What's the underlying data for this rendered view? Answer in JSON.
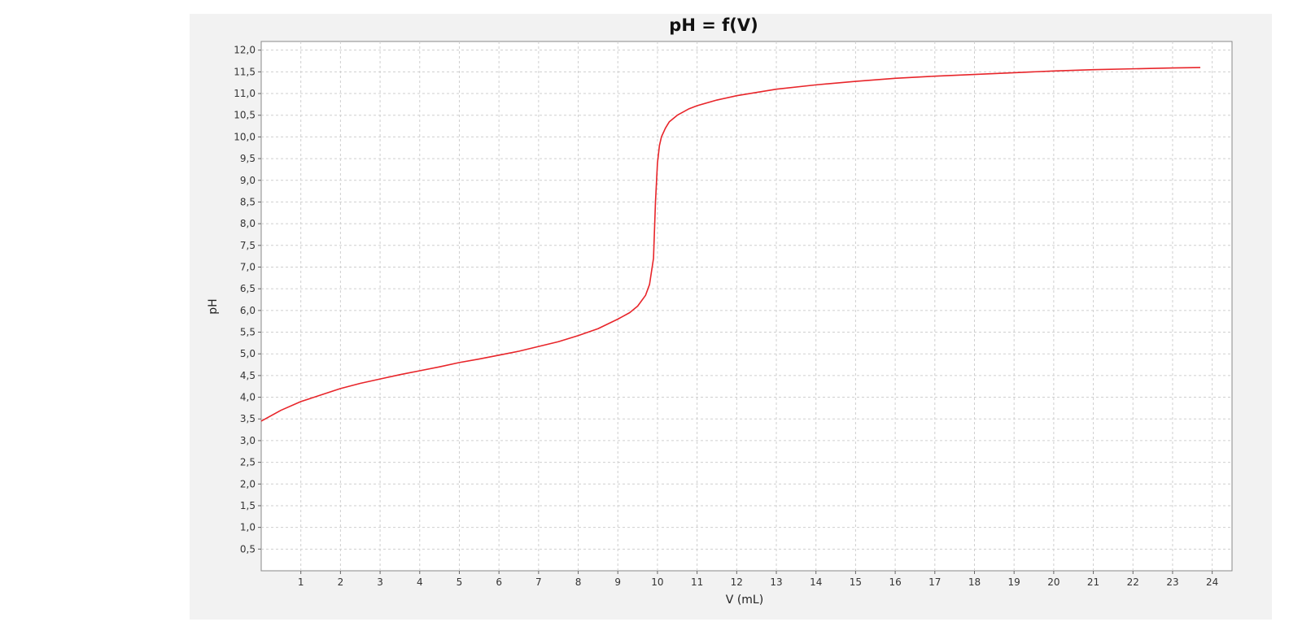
{
  "chart_data": {
    "type": "line",
    "title": "pH = f(V)",
    "xlabel": "V (mL)",
    "ylabel": "pH",
    "xlim": [
      0,
      24.5
    ],
    "ylim": [
      0,
      12.2
    ],
    "grid": true,
    "x_ticks": [
      1,
      2,
      3,
      4,
      5,
      6,
      7,
      8,
      9,
      10,
      11,
      12,
      13,
      14,
      15,
      16,
      17,
      18,
      19,
      20,
      21,
      22,
      23,
      24
    ],
    "x_tick_labels": [
      "1",
      "2",
      "3",
      "4",
      "5",
      "6",
      "7",
      "8",
      "9",
      "10",
      "11",
      "12",
      "13",
      "14",
      "15",
      "16",
      "17",
      "18",
      "19",
      "20",
      "21",
      "22",
      "23",
      "24"
    ],
    "y_ticks": [
      0.5,
      1,
      1.5,
      2,
      2.5,
      3,
      3.5,
      4,
      4.5,
      5,
      5.5,
      6,
      6.5,
      7,
      7.5,
      8,
      8.5,
      9,
      9.5,
      10,
      10.5,
      11,
      11.5,
      12
    ],
    "y_tick_labels": [
      "0,5",
      "1,0",
      "1,5",
      "2,0",
      "2,5",
      "3,0",
      "3,5",
      "4,0",
      "4,5",
      "5,0",
      "5,5",
      "6,0",
      "6,5",
      "7,0",
      "7,5",
      "8,0",
      "8,5",
      "9,0",
      "9,5",
      "10,0",
      "10,5",
      "11,0",
      "11,5",
      "12,0"
    ],
    "series": [
      {
        "color": "#e8252a",
        "x": [
          0,
          0.5,
          1,
          1.5,
          2,
          2.5,
          3,
          3.5,
          4,
          4.5,
          5,
          5.5,
          6,
          6.5,
          7,
          7.5,
          8,
          8.5,
          9,
          9.3,
          9.5,
          9.7,
          9.8,
          9.9,
          9.95,
          10,
          10.05,
          10.1,
          10.2,
          10.3,
          10.5,
          10.8,
          11,
          11.5,
          12,
          13,
          14,
          15,
          16,
          17,
          18,
          19,
          20,
          21,
          22,
          23,
          23.7
        ],
        "y": [
          3.45,
          3.7,
          3.9,
          4.05,
          4.2,
          4.32,
          4.42,
          4.52,
          4.61,
          4.7,
          4.8,
          4.88,
          4.97,
          5.06,
          5.17,
          5.28,
          5.42,
          5.58,
          5.8,
          5.95,
          6.1,
          6.35,
          6.6,
          7.2,
          8.5,
          9.4,
          9.8,
          10.0,
          10.2,
          10.35,
          10.5,
          10.65,
          10.72,
          10.85,
          10.95,
          11.1,
          11.2,
          11.28,
          11.35,
          11.4,
          11.44,
          11.48,
          11.52,
          11.55,
          11.57,
          11.59,
          11.6
        ]
      }
    ]
  }
}
